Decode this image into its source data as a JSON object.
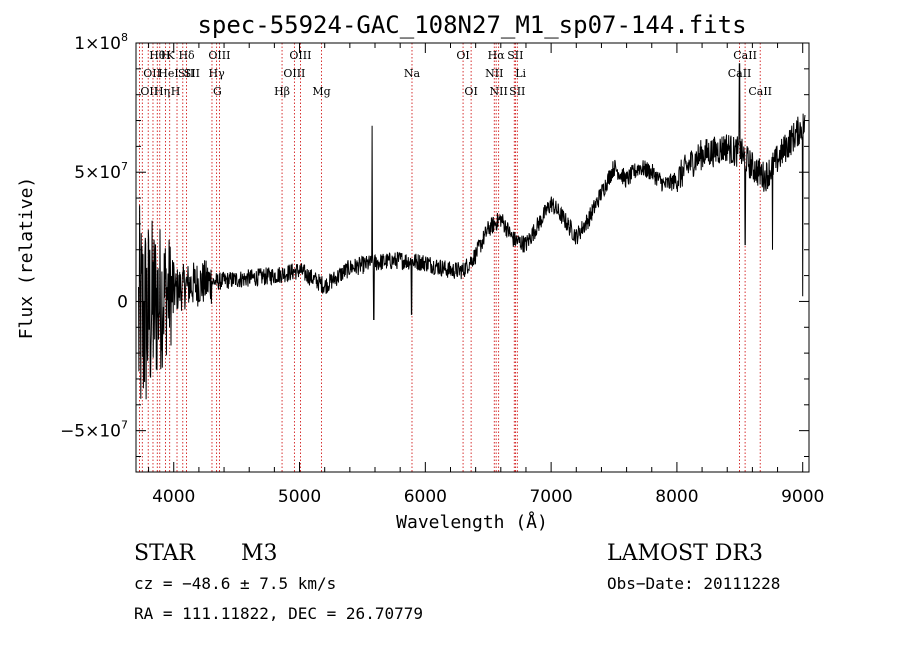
{
  "chart_data": {
    "type": "line",
    "title": "spec-55924-GAC_108N27_M1_sp07-144.fits",
    "xlabel": "Wavelength (Å)",
    "ylabel": "Flux (relative)",
    "xlim": [
      3700,
      9050
    ],
    "ylim": [
      -66000000,
      100000000
    ],
    "x_ticks": [
      4000,
      5000,
      6000,
      7000,
      8000,
      9000
    ],
    "x_tick_labels": [
      "4000",
      "5000",
      "6000",
      "7000",
      "8000",
      "9000"
    ],
    "y_ticks": [
      -50000000,
      0,
      50000000,
      100000000
    ],
    "y_tick_labels": [
      {
        "base": "−5×10",
        "exp": "7"
      },
      {
        "base": "0",
        "exp": ""
      },
      {
        "base": "5×10",
        "exp": "7"
      },
      {
        "base": "1×10",
        "exp": "8"
      }
    ],
    "spectrum_envelope": {
      "x": [
        3700,
        3800,
        3900,
        4000,
        4100,
        4200,
        4400,
        4600,
        4800,
        5000,
        5200,
        5400,
        5600,
        5800,
        6000,
        6200,
        6300,
        6400,
        6500,
        6600,
        6700,
        6800,
        6900,
        7000,
        7100,
        7200,
        7300,
        7400,
        7500,
        7600,
        7700,
        7800,
        7900,
        8000,
        8100,
        8200,
        8300,
        8400,
        8450,
        8500,
        8600,
        8700,
        8800,
        8900,
        9000
      ],
      "y": [
        -10000000,
        -5000000,
        2000000,
        4000000,
        6000000,
        7000000,
        8000000,
        9000000,
        10000000,
        12000000,
        6000000,
        13000000,
        15000000,
        16000000,
        15000000,
        12000000,
        12000000,
        18000000,
        28000000,
        32000000,
        24000000,
        22000000,
        30000000,
        38000000,
        32000000,
        25000000,
        32000000,
        42000000,
        52000000,
        47000000,
        52000000,
        50000000,
        45000000,
        47000000,
        53000000,
        57000000,
        58000000,
        60000000,
        58000000,
        58000000,
        52000000,
        48000000,
        55000000,
        62000000,
        68000000
      ]
    },
    "spectrum_features": [
      {
        "x": 5577,
        "y": 68000000,
        "kind": "spike"
      },
      {
        "x": 5590,
        "y": -7000000,
        "kind": "dip"
      },
      {
        "x": 5890,
        "y": -5000000,
        "kind": "dip"
      },
      {
        "x": 8498,
        "y": 92000000,
        "kind": "spike"
      },
      {
        "x": 8542,
        "y": 22000000,
        "kind": "dip"
      },
      {
        "x": 8760,
        "y": 20000000,
        "kind": "dip"
      },
      {
        "x": 9000,
        "y": 2000000,
        "kind": "dip"
      }
    ],
    "emission_lines": [
      {
        "x": 3727,
        "label": "OII",
        "row": 2,
        "anchor": "start"
      },
      {
        "x": 3750,
        "label": "OII",
        "row": 1,
        "anchor": "start"
      },
      {
        "x": 3797,
        "label": "Hθ",
        "row": 0,
        "anchor": "start"
      },
      {
        "x": 3835,
        "label": "Hη",
        "row": 2,
        "anchor": "start"
      },
      {
        "x": 3869,
        "label": "HeI",
        "row": 1,
        "anchor": "start"
      },
      {
        "x": 3889,
        "label": "H",
        "row": 0,
        "anchor": "start"
      },
      {
        "x": 3934,
        "label": "K",
        "row": 0,
        "anchor": "start"
      },
      {
        "x": 3968,
        "label": "H",
        "row": 2,
        "anchor": "start"
      },
      {
        "x": 4026,
        "label": "SII",
        "row": 1,
        "anchor": "start"
      },
      {
        "x": 4102,
        "label": "Hδ",
        "row": 0,
        "anchor": "middle"
      },
      {
        "x": 4072,
        "label": "SII",
        "row": 1,
        "anchor": "start"
      },
      {
        "x": 4304,
        "label": "G",
        "row": 2,
        "anchor": "start"
      },
      {
        "x": 4341,
        "label": "Hγ",
        "row": 1,
        "anchor": "middle"
      },
      {
        "x": 4363,
        "label": "OIII",
        "row": 0,
        "anchor": "middle"
      },
      {
        "x": 4861,
        "label": "Hβ",
        "row": 2,
        "anchor": "middle"
      },
      {
        "x": 4959,
        "label": "OIII",
        "row": 1,
        "anchor": "middle"
      },
      {
        "x": 5007,
        "label": "OIII",
        "row": 0,
        "anchor": "middle"
      },
      {
        "x": 5175,
        "label": "Mg",
        "row": 2,
        "anchor": "middle"
      },
      {
        "x": 5894,
        "label": "Na",
        "row": 1,
        "anchor": "middle"
      },
      {
        "x": 6300,
        "label": "OI",
        "row": 0,
        "anchor": "middle"
      },
      {
        "x": 6364,
        "label": "OI",
        "row": 2,
        "anchor": "middle"
      },
      {
        "x": 6548,
        "label": "NII",
        "row": 1,
        "anchor": "middle"
      },
      {
        "x": 6563,
        "label": "Hα",
        "row": 0,
        "anchor": "middle"
      },
      {
        "x": 6583,
        "label": "NII",
        "row": 2,
        "anchor": "middle"
      },
      {
        "x": 6707,
        "label": "Li",
        "row": 1,
        "anchor": "start"
      },
      {
        "x": 6716,
        "label": "SII",
        "row": 0,
        "anchor": "middle"
      },
      {
        "x": 6731,
        "label": "SII",
        "row": 2,
        "anchor": "middle"
      },
      {
        "x": 8498,
        "label": "CaII",
        "row": 1,
        "anchor": "middle"
      },
      {
        "x": 8542,
        "label": "CaII",
        "row": 0,
        "anchor": "middle"
      },
      {
        "x": 8662,
        "label": "CaII",
        "row": 2,
        "anchor": "middle"
      }
    ]
  },
  "info": {
    "object_class": "STAR",
    "subclass": "M3",
    "survey": "LAMOST DR3",
    "redshift": "cz = −48.6 ± 7.5 km/s",
    "obs_date": "Obs−Date: 20111228",
    "coordinates": "RA = 111.11822, DEC =  26.70779"
  },
  "colors": {
    "line_marker": "#cc0000",
    "spectrum": "#000000",
    "axes": "#000000"
  }
}
